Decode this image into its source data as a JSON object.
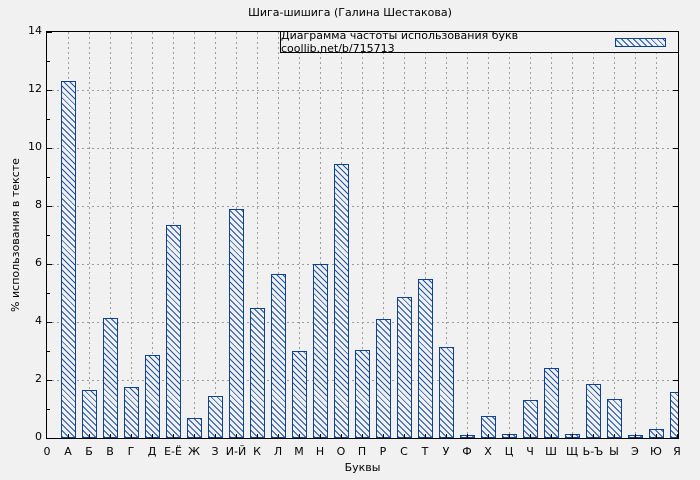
{
  "chart_data": {
    "type": "bar",
    "title": "Шига-шишига (Галина Шестакова)",
    "legend": "Диаграмма частоты использования букв coollib.net/b/715713",
    "legend_position": "top-right",
    "xlabel": "Буквы",
    "ylabel": "% использования в тексте",
    "ylim": [
      0,
      14
    ],
    "yticks": [
      0,
      2,
      4,
      6,
      8,
      10,
      12,
      14
    ],
    "origin_label": "0",
    "grid": true,
    "categories": [
      "А",
      "Б",
      "В",
      "Г",
      "Д",
      "Е-Ё",
      "Ж",
      "З",
      "И-Й",
      "К",
      "Л",
      "М",
      "Н",
      "О",
      "П",
      "Р",
      "С",
      "Т",
      "У",
      "Ф",
      "Х",
      "Ц",
      "Ч",
      "Ш",
      "Щ",
      "Ь-Ъ",
      "Ы",
      "Э",
      "Ю",
      "Я"
    ],
    "values": [
      12.3,
      1.65,
      4.15,
      1.75,
      2.85,
      7.35,
      0.7,
      1.45,
      7.9,
      4.5,
      5.65,
      3.0,
      6.0,
      9.45,
      3.05,
      4.1,
      4.85,
      5.5,
      3.15,
      0.1,
      0.75,
      0.15,
      1.3,
      2.4,
      0.15,
      1.85,
      1.35,
      0.1,
      0.3,
      1.6
    ],
    "style": {
      "bar_fill": "#f1f1f1",
      "bar_border_color": "#0e4194",
      "hatch_color": "#1e53a6",
      "hatch_direction": "diagonal-down",
      "grid_color": "#9b9b9b",
      "background": "#f1f1f1",
      "text_color": "#000000"
    }
  }
}
